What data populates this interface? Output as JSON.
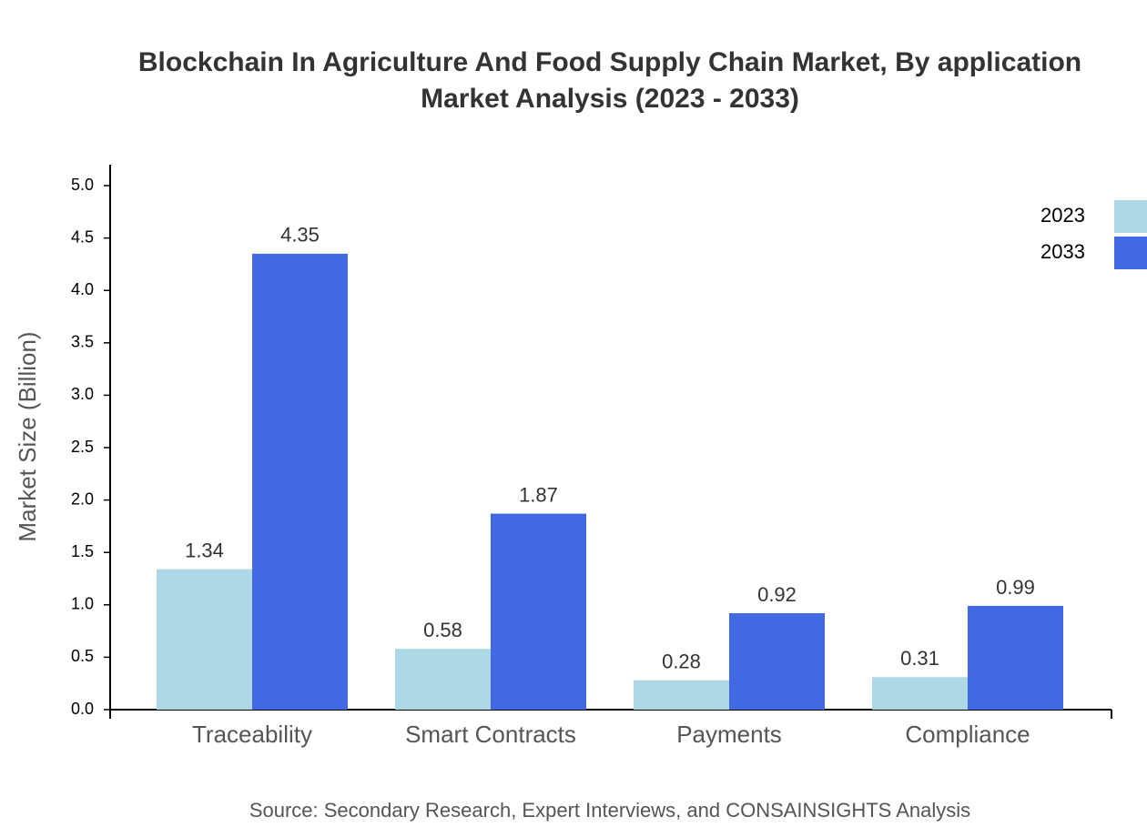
{
  "chart_data": {
    "type": "bar",
    "title": [
      "Blockchain In Agriculture And Food Supply Chain Market, By application",
      "Market Analysis (2023 - 2033)"
    ],
    "y_label": "Market Size (Billion)",
    "source": "Source: Secondary Research, Expert Interviews, and CONSAINSIGHTS Analysis",
    "categories": [
      "Traceability",
      "Smart Contracts",
      "Payments",
      "Compliance"
    ],
    "series": [
      {
        "name": "2023",
        "color": "#add8e6",
        "values": [
          1.34,
          0.58,
          0.28,
          0.31
        ]
      },
      {
        "name": "2033",
        "color": "#4169e1",
        "values": [
          4.35,
          1.87,
          0.92,
          0.99
        ]
      }
    ],
    "ylim": [
      0,
      5.2
    ],
    "yticks": [
      {
        "value": 0,
        "label": "0.0"
      },
      0.5,
      {
        "value": 1,
        "label": "1.0"
      },
      1.5,
      {
        "value": 2,
        "label": "2.0"
      },
      2.5,
      {
        "value": 3,
        "label": "3.0"
      },
      3.5,
      {
        "value": 4,
        "label": "4.0"
      },
      4.5,
      {
        "value": 5,
        "label": "5.0"
      }
    ],
    "legend": "top-right"
  }
}
